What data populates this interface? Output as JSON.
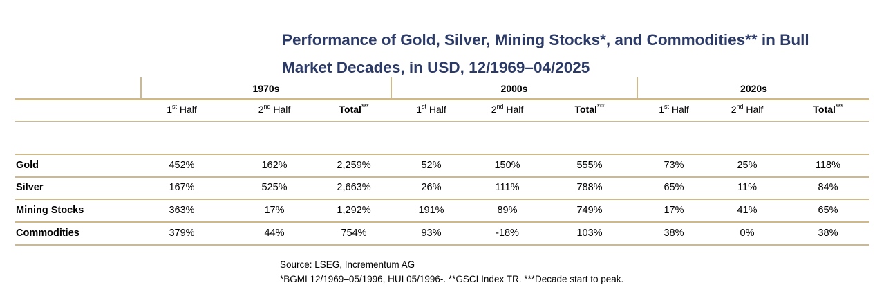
{
  "title": "Performance of Gold, Silver, Mining Stocks*, and Commodities** in Bull Market Decades, in USD, 12/1969–04/2025",
  "title_line1": "Performance of Gold, Silver, Mining Stocks*, and Commodities** in Bull",
  "title_line2": "Market Decades, in USD, 12/1969–04/2025",
  "colors": {
    "title": "#2b3a67",
    "rule": "#cfb88a"
  },
  "table": {
    "decades": [
      "1970s",
      "2000s",
      "2020s"
    ],
    "subheaders": [
      {
        "base": "1",
        "sup": "st",
        "rest": " Half"
      },
      {
        "base": "2",
        "sup": "nd",
        "rest": " Half"
      },
      {
        "bold": "Total",
        "sup": "***"
      }
    ],
    "rows": [
      {
        "label": "Gold",
        "values": [
          "452%",
          "162%",
          "2,259%",
          "52%",
          "150%",
          "555%",
          "73%",
          "25%",
          "118%"
        ]
      },
      {
        "label": "Silver",
        "values": [
          "167%",
          "525%",
          "2,663%",
          "26%",
          "111%",
          "788%",
          "65%",
          "11%",
          "84%"
        ]
      },
      {
        "label": "Mining Stocks",
        "values": [
          "363%",
          "17%",
          "1,292%",
          "191%",
          "89%",
          "749%",
          "17%",
          "41%",
          "65%"
        ]
      },
      {
        "label": "Commodities",
        "values": [
          "379%",
          "44%",
          "754%",
          "93%",
          "-18%",
          "103%",
          "38%",
          "0%",
          "38%"
        ]
      }
    ]
  },
  "footer": {
    "source": "Source: LSEG, Incrementum AG",
    "notes": "*BGMI 12/1969–05/1996, HUI 05/1996-. **GSCI Index TR. ***Decade start to peak."
  }
}
